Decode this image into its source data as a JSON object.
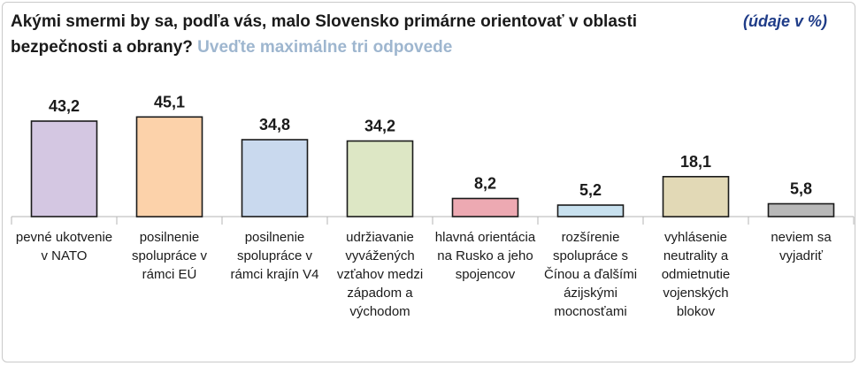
{
  "header": {
    "title": "Akými smermi by sa, podľa vás, malo Slovensko primárne orientovať v oblasti bezpečnosti a obrany?",
    "subtitle": "Uveďte maximálne tri odpovede",
    "units": "(údaje v %)"
  },
  "chart_data": {
    "type": "bar",
    "title": "Akými smermi by sa, podľa vás, malo Slovensko primárne orientovať v oblasti bezpečnosti a obrany? Uveďte maximálne tri odpovede",
    "ylabel": "(údaje v %)",
    "categories": [
      "pevné ukotvenie v NATO",
      "posilnenie spolupráce v rámci EÚ",
      "posilnenie spolupráce v rámci krajín V4",
      "udržiavanie vyvážených vzťahov medzi západom a východom",
      "hlavná orientácia na Rusko a jeho spojencov",
      "rozšírenie spolupráce s Čínou a ďalšími ázijskými mocnosťami",
      "vyhlásenie neutrality a odmietnutie vojenských blokov",
      "neviem sa vyjadriť"
    ],
    "values": [
      43.2,
      45.1,
      34.8,
      34.2,
      8.2,
      5.2,
      18.1,
      5.8
    ],
    "value_labels": [
      "43,2",
      "45,1",
      "34,8",
      "34,2",
      "8,2",
      "5,2",
      "18,1",
      "5,8"
    ],
    "colors": [
      "#d4c7e2",
      "#fcd2aa",
      "#c9d9ee",
      "#dde7c5",
      "#eda9b2",
      "#c8e1ef",
      "#e2d9b6",
      "#b8b8b8"
    ],
    "ylim": [
      0,
      50
    ],
    "grid": false,
    "legend": "none"
  }
}
